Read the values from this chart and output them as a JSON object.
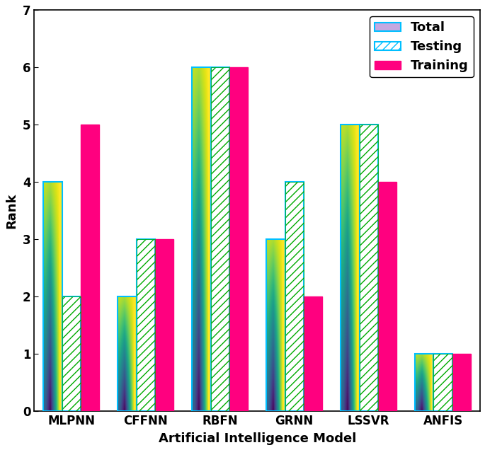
{
  "categories": [
    "MLPNN",
    "CFFNN",
    "RBFN",
    "GRNN",
    "LSSVR",
    "ANFIS"
  ],
  "total": [
    4,
    2,
    6,
    3,
    5,
    1
  ],
  "testing": [
    2,
    3,
    6,
    4,
    5,
    1
  ],
  "training": [
    5,
    3,
    6,
    2,
    4,
    1
  ],
  "ylabel": "Rank",
  "xlabel": "Artificial Intelligence Model",
  "ylim": [
    0,
    7
  ],
  "yticks": [
    0,
    1,
    2,
    3,
    4,
    5,
    6,
    7
  ],
  "bar_width": 0.25,
  "total_edge_color": "#00BFFF",
  "testing_edge_color": "#00BFFF",
  "training_color": "#FF007F",
  "training_edge_color": "#FF007F",
  "testing_hatch_color": "#00AA00",
  "testing_hatch": "///",
  "legend_labels": [
    "Total",
    "Testing",
    "Training"
  ],
  "title_fontsize": 13,
  "label_fontsize": 13,
  "tick_fontsize": 12,
  "legend_fontsize": 13
}
